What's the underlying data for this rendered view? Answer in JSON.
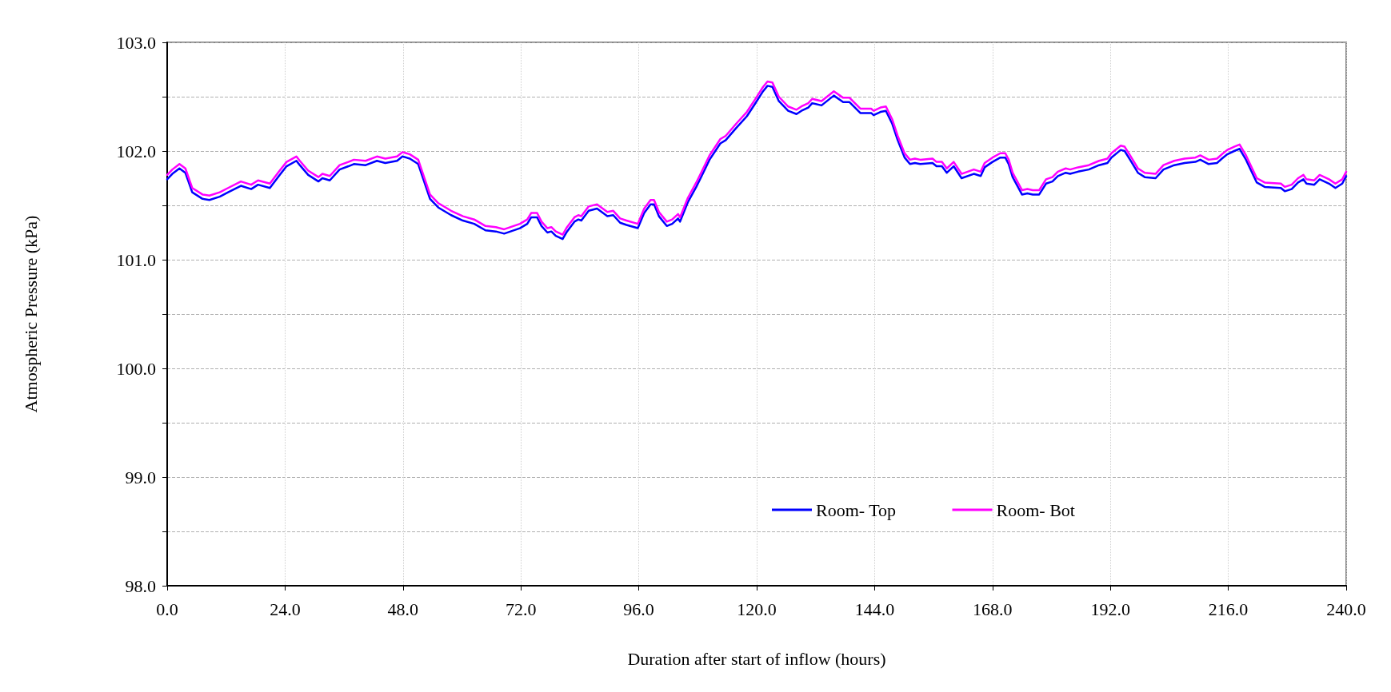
{
  "chart_data": {
    "type": "line",
    "xlabel": "Duration after start of inflow (hours)",
    "ylabel": "Atmospheric Pressure (kPa)",
    "x": [
      0,
      1.05,
      2.5,
      3.7,
      5.1,
      7.2,
      8.6,
      10.7,
      12.4,
      15.0,
      17.1,
      18.5,
      20.9,
      22.9,
      24.3,
      26.3,
      27.0,
      28.7,
      30.8,
      31.6,
      33.1,
      35.1,
      36.9,
      38.0,
      40.4,
      42.7,
      44.4,
      46.8,
      47.9,
      49.4,
      51.1,
      53.5,
      55.2,
      57.8,
      60.2,
      62.5,
      64.8,
      66.9,
      68.6,
      71.8,
      73.3,
      74.1,
      75.3,
      76.2,
      77.4,
      78.2,
      79.1,
      80.5,
      81.4,
      82.9,
      83.7,
      84.3,
      85.8,
      87.5,
      89.6,
      90.8,
      92.2,
      93.5,
      95.8,
      97.1,
      98.4,
      99.1,
      100.1,
      101.7,
      102.8,
      104.0,
      104.4,
      106.0,
      107.7,
      108.8,
      110.4,
      112.6,
      113.7,
      115.8,
      118.0,
      119.6,
      121.3,
      122.2,
      123.2,
      124.5,
      126.4,
      128.1,
      129.1,
      130.5,
      131.3,
      133.2,
      135.7,
      137.6,
      138.9,
      141.1,
      143.3,
      143.8,
      145.2,
      146.3,
      147.6,
      148.7,
      150.1,
      151.2,
      152.2,
      153.3,
      155.8,
      156.6,
      157.7,
      158.7,
      160.1,
      161.7,
      164.2,
      165.6,
      166.4,
      168.0,
      169.6,
      170.6,
      171.3,
      172.1,
      174.0,
      175.1,
      176.2,
      177.5,
      178.9,
      180.2,
      181.3,
      182.9,
      183.8,
      185.4,
      187.6,
      189.7,
      191.4,
      192.2,
      194.1,
      194.9,
      196.0,
      197.6,
      199.0,
      201.2,
      202.8,
      205.0,
      207.1,
      209.3,
      210.3,
      212.0,
      213.7,
      214.7,
      215.8,
      217.2,
      218.3,
      219.6,
      221.8,
      223.4,
      226.7,
      227.5,
      228.9,
      230.2,
      231.3,
      231.9,
      233.5,
      234.6,
      236.5,
      237.8,
      239.2,
      240
    ],
    "series": [
      {
        "name": "Room- Top",
        "color": "#0000ff",
        "values": [
          101.74,
          101.79,
          101.84,
          101.8,
          101.62,
          101.56,
          101.55,
          101.58,
          101.62,
          101.68,
          101.65,
          101.69,
          101.66,
          101.78,
          101.86,
          101.91,
          101.87,
          101.78,
          101.72,
          101.75,
          101.73,
          101.83,
          101.86,
          101.88,
          101.87,
          101.91,
          101.89,
          101.91,
          101.95,
          101.93,
          101.88,
          101.56,
          101.48,
          101.41,
          101.36,
          101.33,
          101.27,
          101.26,
          101.24,
          101.29,
          101.33,
          101.39,
          101.39,
          101.31,
          101.25,
          101.26,
          101.22,
          101.19,
          101.26,
          101.35,
          101.37,
          101.36,
          101.45,
          101.47,
          101.4,
          101.41,
          101.34,
          101.32,
          101.29,
          101.43,
          101.51,
          101.51,
          101.4,
          101.31,
          101.33,
          101.38,
          101.35,
          101.53,
          101.67,
          101.77,
          101.92,
          102.07,
          102.1,
          102.21,
          102.32,
          102.43,
          102.55,
          102.6,
          102.59,
          102.46,
          102.37,
          102.34,
          102.37,
          102.4,
          102.44,
          102.42,
          102.51,
          102.45,
          102.45,
          102.35,
          102.35,
          102.33,
          102.36,
          102.37,
          102.25,
          102.1,
          101.94,
          101.88,
          101.89,
          101.88,
          101.89,
          101.86,
          101.86,
          101.8,
          101.86,
          101.75,
          101.79,
          101.77,
          101.85,
          101.9,
          101.94,
          101.94,
          101.88,
          101.76,
          101.6,
          101.61,
          101.6,
          101.6,
          101.7,
          101.72,
          101.77,
          101.8,
          101.79,
          101.81,
          101.83,
          101.87,
          101.89,
          101.94,
          102.01,
          102.0,
          101.92,
          101.8,
          101.76,
          101.75,
          101.83,
          101.87,
          101.89,
          101.9,
          101.92,
          101.88,
          101.89,
          101.93,
          101.97,
          102.0,
          102.02,
          101.92,
          101.71,
          101.67,
          101.66,
          101.63,
          101.65,
          101.71,
          101.74,
          101.7,
          101.69,
          101.74,
          101.7,
          101.66,
          101.7,
          101.77
        ]
      },
      {
        "name": "Room- Bot",
        "color": "#ff00ff",
        "values": [
          101.78,
          101.83,
          101.88,
          101.84,
          101.66,
          101.6,
          101.59,
          101.62,
          101.66,
          101.72,
          101.69,
          101.73,
          101.7,
          101.82,
          101.9,
          101.95,
          101.91,
          101.82,
          101.76,
          101.79,
          101.77,
          101.87,
          101.9,
          101.92,
          101.91,
          101.95,
          101.93,
          101.95,
          101.99,
          101.97,
          101.92,
          101.6,
          101.52,
          101.45,
          101.4,
          101.37,
          101.31,
          101.3,
          101.28,
          101.33,
          101.37,
          101.43,
          101.43,
          101.35,
          101.29,
          101.3,
          101.26,
          101.23,
          101.3,
          101.39,
          101.41,
          101.4,
          101.49,
          101.51,
          101.44,
          101.45,
          101.38,
          101.36,
          101.33,
          101.47,
          101.55,
          101.55,
          101.44,
          101.35,
          101.37,
          101.42,
          101.39,
          101.57,
          101.71,
          101.81,
          101.96,
          102.11,
          102.14,
          102.25,
          102.36,
          102.47,
          102.59,
          102.64,
          102.63,
          102.5,
          102.41,
          102.38,
          102.41,
          102.44,
          102.48,
          102.46,
          102.55,
          102.49,
          102.49,
          102.39,
          102.39,
          102.37,
          102.4,
          102.41,
          102.29,
          102.14,
          101.98,
          101.92,
          101.93,
          101.92,
          101.93,
          101.9,
          101.9,
          101.84,
          101.9,
          101.79,
          101.83,
          101.81,
          101.89,
          101.94,
          101.98,
          101.98,
          101.92,
          101.8,
          101.64,
          101.65,
          101.64,
          101.64,
          101.74,
          101.76,
          101.81,
          101.84,
          101.83,
          101.85,
          101.87,
          101.91,
          101.93,
          101.98,
          102.05,
          102.04,
          101.96,
          101.84,
          101.8,
          101.79,
          101.87,
          101.91,
          101.93,
          101.94,
          101.96,
          101.92,
          101.93,
          101.97,
          102.01,
          102.04,
          102.06,
          101.96,
          101.75,
          101.71,
          101.7,
          101.67,
          101.69,
          101.75,
          101.78,
          101.74,
          101.73,
          101.78,
          101.74,
          101.7,
          101.74,
          101.81
        ]
      }
    ],
    "xlim": [
      0,
      240
    ],
    "xticks": [
      {
        "value": 0,
        "label": "0.0"
      },
      {
        "value": 24,
        "label": "24.0"
      },
      {
        "value": 48,
        "label": "48.0"
      },
      {
        "value": 72,
        "label": "72.0"
      },
      {
        "value": 96,
        "label": "96.0"
      },
      {
        "value": 120,
        "label": "120.0"
      },
      {
        "value": 144,
        "label": "144.0"
      },
      {
        "value": 168,
        "label": "168.0"
      },
      {
        "value": 192,
        "label": "192.0"
      },
      {
        "value": 216,
        "label": "216.0"
      },
      {
        "value": 240,
        "label": "240.0"
      }
    ],
    "ylim": [
      98,
      103
    ],
    "yticks": [
      {
        "value": 98,
        "label": "98.0"
      },
      {
        "value": 98.5,
        "label": null
      },
      {
        "value": 99,
        "label": "99.0"
      },
      {
        "value": 99.5,
        "label": null
      },
      {
        "value": 100,
        "label": "100.0"
      },
      {
        "value": 100.5,
        "label": null
      },
      {
        "value": 101,
        "label": "101.0"
      },
      {
        "value": 101.5,
        "label": null
      },
      {
        "value": 102,
        "label": "102.0"
      },
      {
        "value": 102.5,
        "label": null
      },
      {
        "value": 103,
        "label": "103.0"
      }
    ],
    "grid": true,
    "legend": "bottom right",
    "marker": "none",
    "line_style": "solid"
  }
}
